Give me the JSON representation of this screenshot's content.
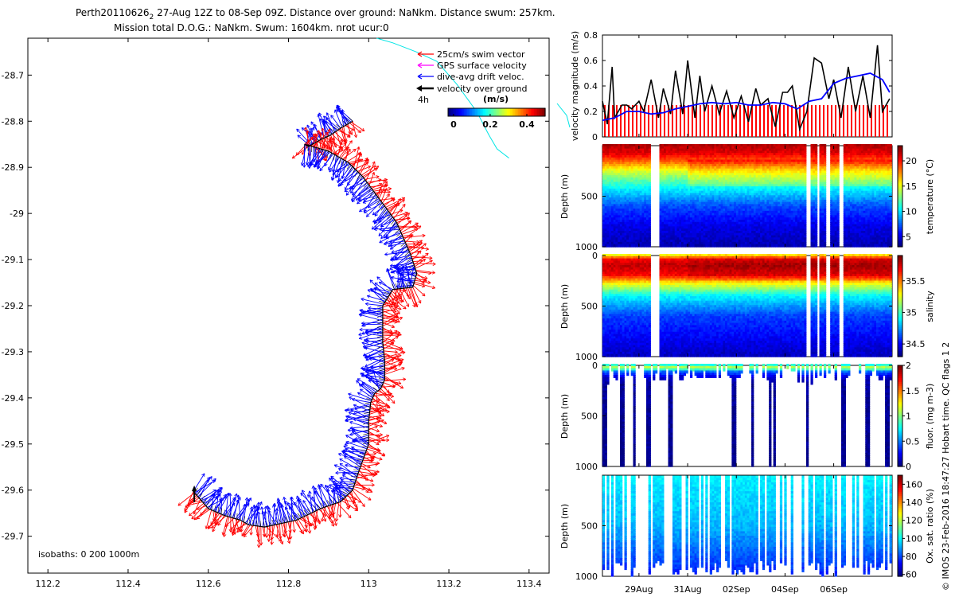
{
  "title": {
    "line1": "Perth20110626",
    "line1_sub": "2",
    "line1_rest": " 27-Aug 12Z to 08-Sep 09Z. Distance over ground: NaNkm. Distance swum: 257km.",
    "line2": "Mission total D.O.G.: NaNkm. Swum: 1604km. nrot ucur:0"
  },
  "side_note": "© IMOS 23-Feb-2016 18:47:27 Hobart time. QC flags 1  2",
  "colors": {
    "swim": "#ff0000",
    "gps": "#ff00ff",
    "drift": "#0000ff",
    "ground": "#000000",
    "isobath": "#00e5e5"
  },
  "chart_data": [
    {
      "type": "scatter",
      "name": "track-map",
      "xlim": [
        112.15,
        113.45
      ],
      "ylim": [
        -29.78,
        -28.62
      ],
      "xticks": [
        "112.2",
        "112.4",
        "112.6",
        "112.8",
        "113",
        "113.2",
        "113.4"
      ],
      "xtick_values": [
        112.2,
        112.4,
        112.6,
        112.8,
        113.0,
        113.2,
        113.4
      ],
      "yticks": [
        "-28.7",
        "-28.8",
        "-28.9",
        "-29",
        "-29.1",
        "-29.2",
        "-29.3",
        "-29.4",
        "-29.5",
        "-29.6",
        "-29.7"
      ],
      "ytick_values": [
        -28.7,
        -28.8,
        -28.9,
        -29.0,
        -29.1,
        -29.2,
        -29.3,
        -29.4,
        -29.5,
        -29.6,
        -29.7
      ],
      "legend": {
        "items": [
          {
            "label": "25cm/s swim vector",
            "color": "#ff0000"
          },
          {
            "label": "GPS surface velocity",
            "color": "#ff00ff"
          },
          {
            "label": "dive-avg drift veloc.",
            "color": "#0000ff"
          },
          {
            "label": "velocity over ground",
            "color": "#000000"
          }
        ],
        "interval_label": "4h",
        "colorbar_unit": "(m/s)",
        "colorbar_ticks": [
          "0",
          "0.2",
          "0.4"
        ],
        "colorbar_tick_values": [
          0,
          0.2,
          0.4
        ],
        "colorbar_range": [
          -0.03,
          0.5
        ]
      },
      "isobath_label": "isobaths: 0   200   1000m",
      "track": {
        "lon": [
          112.96,
          112.93,
          112.905,
          112.88,
          112.86,
          112.85,
          112.84,
          112.9,
          112.95,
          112.985,
          113.015,
          113.045,
          113.07,
          113.09,
          113.105,
          113.12,
          113.11,
          113.06,
          113.035,
          113.035,
          113.035,
          113.04,
          113.04,
          113.03,
          113.015,
          113.005,
          113.0,
          113.0,
          112.975,
          112.96,
          112.93,
          112.88,
          112.82,
          112.74,
          112.7,
          112.68,
          112.64,
          112.6,
          112.56
        ],
        "lat": [
          -28.8,
          -28.815,
          -28.83,
          -28.84,
          -28.85,
          -28.855,
          -28.85,
          -28.865,
          -28.89,
          -28.92,
          -28.955,
          -28.99,
          -29.02,
          -29.06,
          -29.09,
          -29.13,
          -29.16,
          -29.165,
          -29.2,
          -29.24,
          -29.28,
          -29.32,
          -29.36,
          -29.38,
          -29.39,
          -29.41,
          -29.45,
          -29.5,
          -29.56,
          -29.6,
          -29.625,
          -29.64,
          -29.665,
          -29.68,
          -29.675,
          -29.665,
          -29.655,
          -29.64,
          -29.6
        ]
      },
      "cyan_isobath": {
        "lon": [
          113.02,
          113.06,
          113.12,
          113.17,
          113.22,
          113.27,
          113.3,
          113.32,
          113.35
        ],
        "lat": [
          -28.62,
          -28.63,
          -28.65,
          -28.67,
          -28.72,
          -28.78,
          -28.83,
          -28.86,
          -28.88
        ]
      }
    },
    {
      "type": "line",
      "name": "velocity-magnitude",
      "ylabel": "velocity magnitude (m/s)",
      "ylim": [
        0,
        0.8
      ],
      "xlim_days": [
        27.5,
        39.4
      ],
      "yticks": [
        "0",
        "0.2",
        "0.4",
        "0.6",
        "0.8"
      ],
      "ytick_values": [
        0,
        0.2,
        0.4,
        0.6,
        0.8
      ],
      "series": [
        {
          "name": "25cm/s swim vector",
          "color": "#ff0000",
          "value": 0.25
        },
        {
          "name": "velocity over ground",
          "color": "#000000",
          "days": [
            27.5,
            27.7,
            27.9,
            28.0,
            28.3,
            28.5,
            28.7,
            29.0,
            29.2,
            29.5,
            29.8,
            30.0,
            30.3,
            30.5,
            30.8,
            31.0,
            31.3,
            31.5,
            31.7,
            32.0,
            32.3,
            32.6,
            32.9,
            33.2,
            33.5,
            33.8,
            34.0,
            34.3,
            34.6,
            34.9,
            35.1,
            35.3,
            35.6,
            35.9,
            36.2,
            36.5,
            36.8,
            37.0,
            37.3,
            37.6,
            37.9,
            38.2,
            38.5,
            38.8,
            39.0,
            39.3
          ],
          "values": [
            0.28,
            0.1,
            0.55,
            0.15,
            0.25,
            0.25,
            0.22,
            0.28,
            0.2,
            0.45,
            0.15,
            0.38,
            0.18,
            0.52,
            0.18,
            0.6,
            0.15,
            0.48,
            0.2,
            0.4,
            0.18,
            0.36,
            0.15,
            0.32,
            0.12,
            0.38,
            0.25,
            0.3,
            0.08,
            0.35,
            0.35,
            0.4,
            0.06,
            0.2,
            0.62,
            0.58,
            0.3,
            0.45,
            0.15,
            0.55,
            0.2,
            0.48,
            0.15,
            0.72,
            0.2,
            0.3
          ]
        },
        {
          "name": "dive-avg drift veloc.",
          "color": "#0000ff",
          "days": [
            27.5,
            28.0,
            28.5,
            29.0,
            29.5,
            30.0,
            30.5,
            31.0,
            31.5,
            32.0,
            32.5,
            33.0,
            33.5,
            34.0,
            34.5,
            35.0,
            35.5,
            36.0,
            36.5,
            37.0,
            37.5,
            38.0,
            38.5,
            39.0,
            39.3
          ],
          "values": [
            0.13,
            0.15,
            0.2,
            0.2,
            0.18,
            0.19,
            0.22,
            0.24,
            0.26,
            0.27,
            0.26,
            0.27,
            0.25,
            0.25,
            0.27,
            0.26,
            0.22,
            0.28,
            0.3,
            0.42,
            0.46,
            0.48,
            0.5,
            0.45,
            0.35
          ]
        }
      ]
    },
    {
      "type": "heatmap",
      "name": "temperature",
      "ylabel": "Depth (m)",
      "colorbar_label": "temperature (°C)",
      "yticks": [
        "500",
        "1000"
      ],
      "ytick_values": [
        500,
        1000
      ],
      "ylim": [
        0,
        1000
      ],
      "colorbar_ticks": [
        "5",
        "10",
        "15",
        "20"
      ],
      "colorbar_tick_values": [
        5,
        10,
        15,
        20
      ],
      "colorbar_range": [
        3,
        23
      ],
      "profile": {
        "depth": [
          0,
          80,
          150,
          250,
          400,
          600,
          800,
          1000
        ],
        "value": [
          22,
          21,
          19,
          15,
          11,
          7,
          5,
          4
        ]
      }
    },
    {
      "type": "heatmap",
      "name": "salinity",
      "ylabel": "Depth (m)",
      "colorbar_label": "salinity",
      "yticks": [
        "0",
        "500",
        "1000"
      ],
      "ytick_values": [
        0,
        500,
        1000
      ],
      "ylim": [
        0,
        1000
      ],
      "colorbar_ticks": [
        "34.5",
        "35",
        "35.5"
      ],
      "colorbar_tick_values": [
        34.5,
        35.0,
        35.5
      ],
      "colorbar_range": [
        34.3,
        35.9
      ],
      "profile": {
        "depth": [
          0,
          40,
          100,
          200,
          280,
          400,
          600,
          1000
        ],
        "value": [
          35.3,
          35.7,
          35.8,
          35.7,
          35.3,
          34.9,
          34.6,
          34.4
        ]
      }
    },
    {
      "type": "heatmap",
      "name": "fluorescence",
      "ylabel": "Depth (m)",
      "colorbar_label": "fluor. (mg m-3)",
      "yticks": [
        "0",
        "500",
        "1000"
      ],
      "ytick_values": [
        0,
        500,
        1000
      ],
      "ylim": [
        0,
        1000
      ],
      "colorbar_ticks": [
        "0",
        "0.5",
        "1",
        "1.5",
        "2"
      ],
      "colorbar_tick_values": [
        0,
        0.5,
        1,
        1.5,
        2
      ],
      "colorbar_range": [
        0,
        2
      ],
      "profile": {
        "depth": [
          0,
          30,
          60,
          120,
          200,
          1000
        ],
        "value": [
          0.8,
          1.2,
          0.5,
          0.15,
          0.05,
          0.02
        ]
      }
    },
    {
      "type": "heatmap",
      "name": "oxygen",
      "ylabel": "Depth (m)",
      "colorbar_label": "Ox. sat. ratio (%)",
      "yticks": [
        "500",
        "1000"
      ],
      "ytick_values": [
        500,
        1000
      ],
      "ylim": [
        0,
        1000
      ],
      "colorbar_ticks": [
        "60",
        "80",
        "100",
        "120",
        "140",
        "160"
      ],
      "colorbar_tick_values": [
        60,
        80,
        100,
        120,
        140,
        160
      ],
      "colorbar_range": [
        58,
        170
      ],
      "profile": {
        "depth": [
          0,
          100,
          300,
          500,
          700,
          1000
        ],
        "value": [
          100,
          97,
          95,
          92,
          85,
          75
        ]
      }
    }
  ],
  "time_axis": {
    "ticks": [
      "29Aug",
      "31Aug",
      "02Sep",
      "04Sep",
      "06Sep"
    ],
    "tick_days": [
      29,
      31,
      33,
      35,
      37
    ],
    "xlim_days": [
      27.5,
      39.4
    ]
  }
}
